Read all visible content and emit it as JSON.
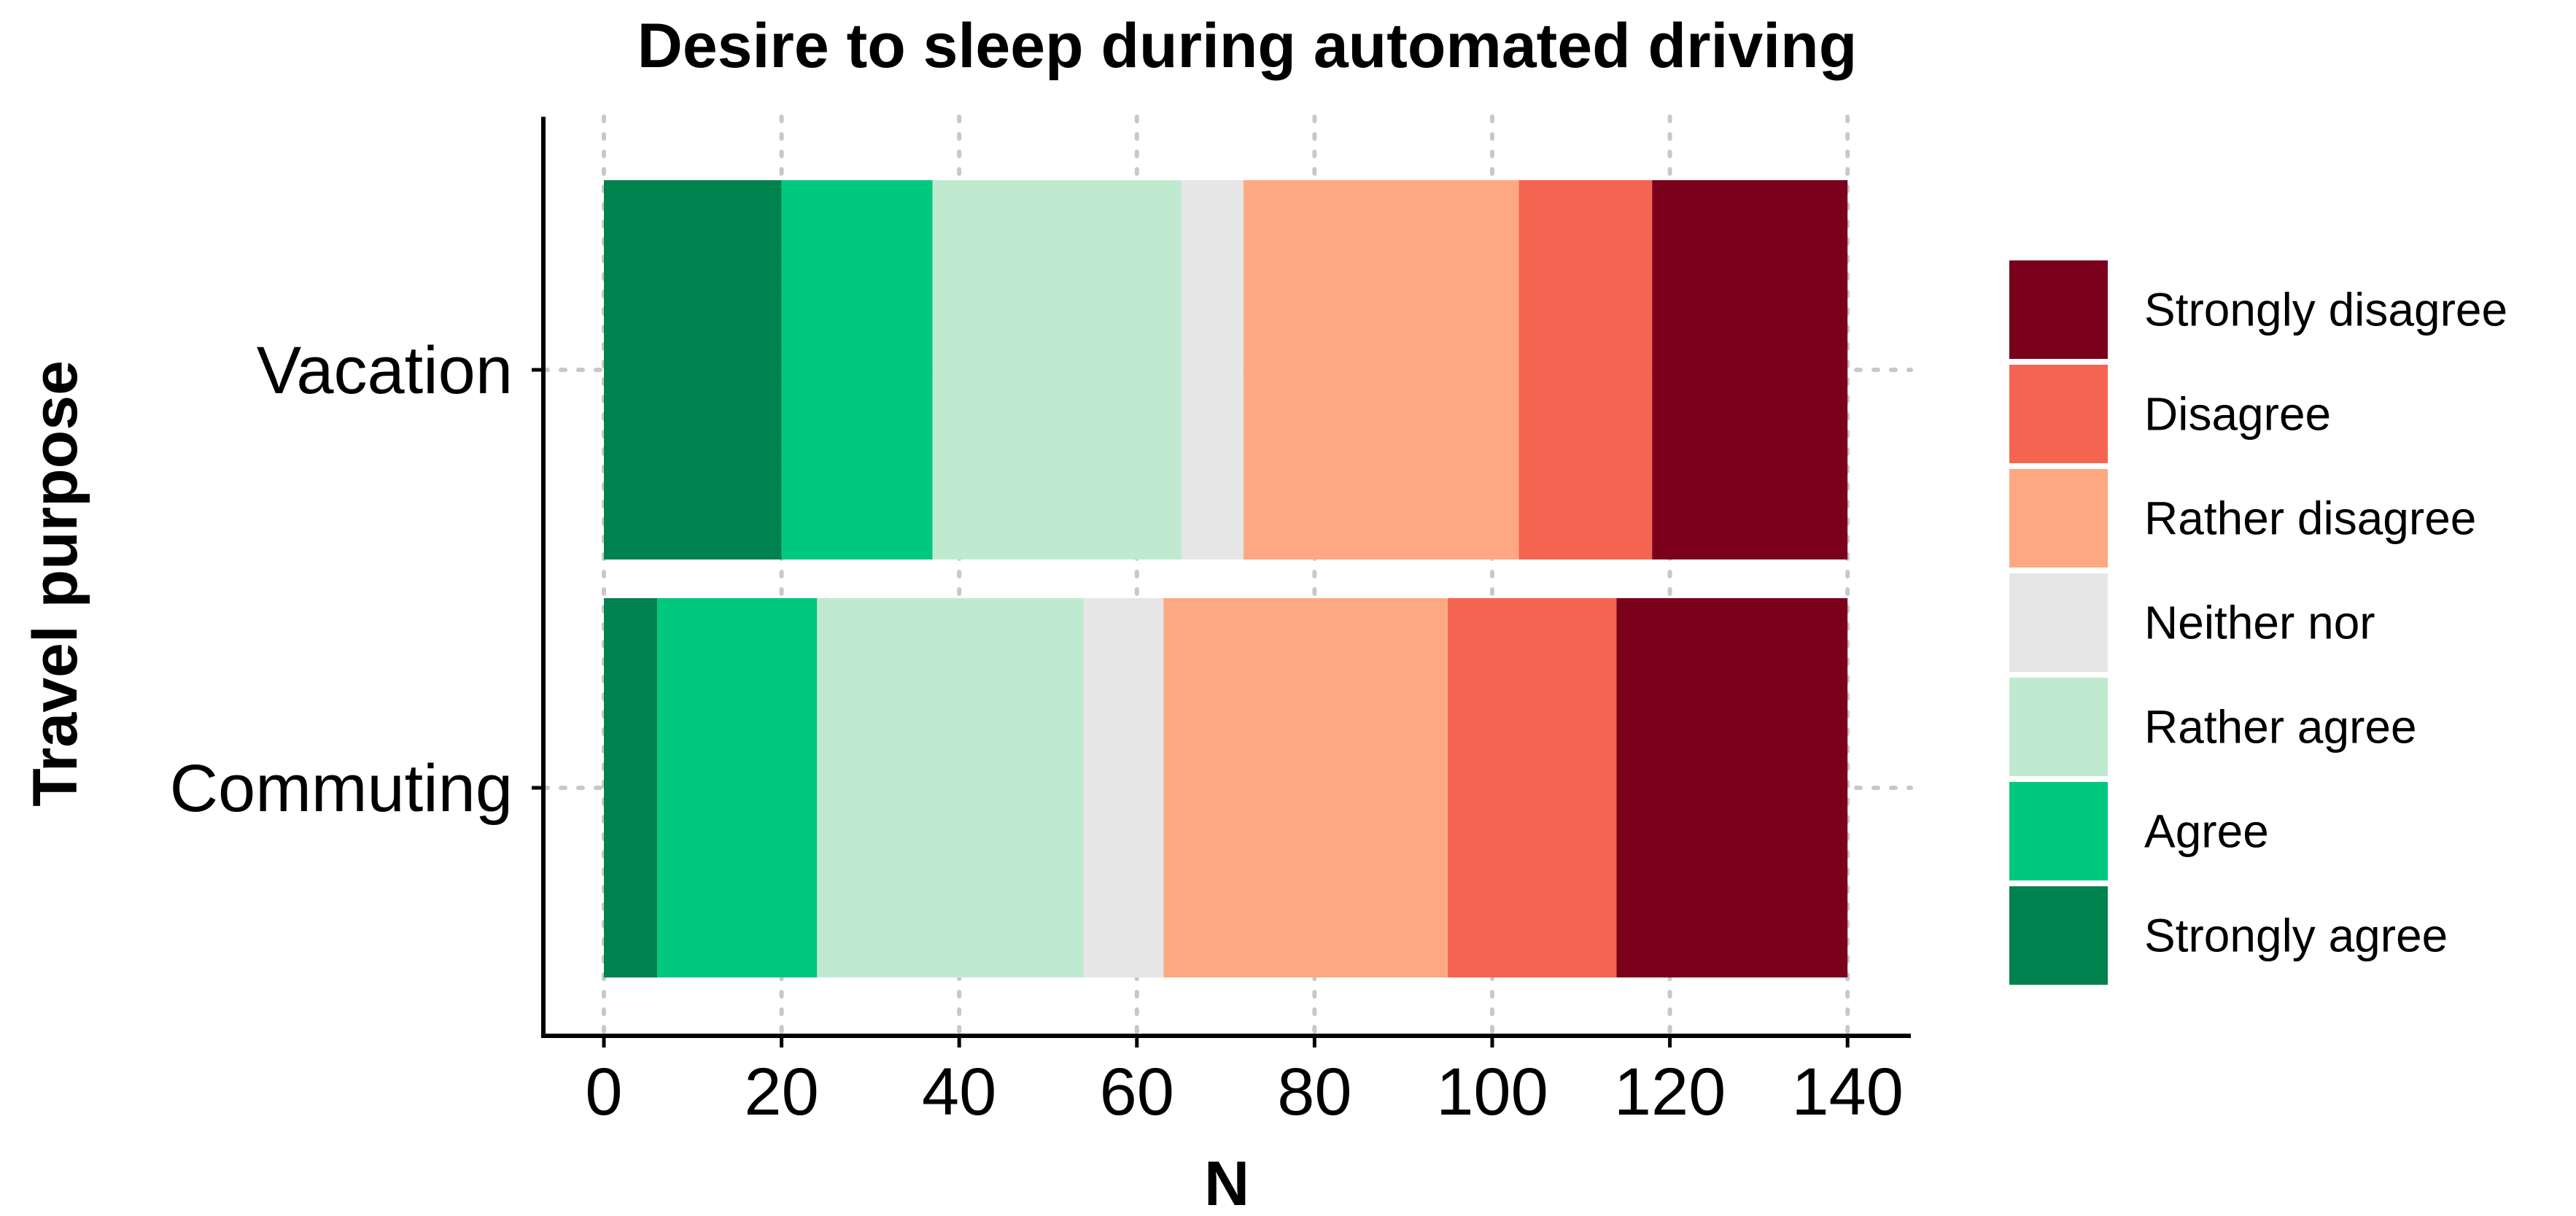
{
  "chart_data": {
    "type": "bar",
    "orientation": "horizontal",
    "stacked": true,
    "title": "Desire to sleep during automated driving",
    "xlabel": "N",
    "ylabel": "Travel purpose",
    "categories": [
      "Vacation",
      "Commuting"
    ],
    "x_ticks": [
      0,
      20,
      40,
      60,
      80,
      100,
      120,
      140
    ],
    "xlim": [
      -7,
      147
    ],
    "grid": true,
    "legend_position": "right",
    "series": [
      {
        "name": "Strongly agree",
        "color": "#00824f",
        "values": [
          20,
          6
        ]
      },
      {
        "name": "Agree",
        "color": "#00c87f",
        "values": [
          17,
          18
        ]
      },
      {
        "name": "Rather agree",
        "color": "#c0ead0",
        "values": [
          28,
          30
        ]
      },
      {
        "name": "Neither nor",
        "color": "#e6e6e6",
        "values": [
          7,
          9
        ]
      },
      {
        "name": "Rather disagree",
        "color": "#fda882",
        "values": [
          31,
          32
        ]
      },
      {
        "name": "Disagree",
        "color": "#f56450",
        "values": [
          15,
          19
        ]
      },
      {
        "name": "Strongly disagree",
        "color": "#7a001c",
        "values": [
          22,
          26
        ]
      }
    ]
  }
}
